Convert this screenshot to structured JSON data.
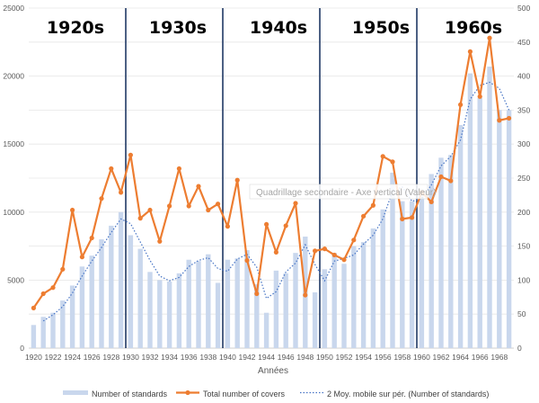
{
  "chart_data": {
    "type": "bar",
    "xlabel": "Années",
    "categories": [
      1920,
      1921,
      1922,
      1923,
      1924,
      1925,
      1926,
      1927,
      1928,
      1929,
      1930,
      1931,
      1932,
      1933,
      1934,
      1935,
      1936,
      1937,
      1938,
      1939,
      1940,
      1941,
      1942,
      1943,
      1944,
      1945,
      1946,
      1947,
      1948,
      1949,
      1950,
      1951,
      1952,
      1953,
      1954,
      1955,
      1956,
      1957,
      1958,
      1959,
      1960,
      1961,
      1962,
      1963,
      1964,
      1965,
      1966,
      1967,
      1968,
      1969
    ],
    "x_tick_labels": [
      "1920",
      "1922",
      "1924",
      "1926",
      "1928",
      "1930",
      "1932",
      "1934",
      "1936",
      "1938",
      "1940",
      "1942",
      "1944",
      "1946",
      "1948",
      "1950",
      "1952",
      "1954",
      "1956",
      "1958",
      "1960",
      "1962",
      "1964",
      "1966",
      "1968"
    ],
    "y_left": {
      "min": 0,
      "max": 25000,
      "ticks": [
        "0",
        "5000",
        "10000",
        "15000",
        "20000",
        "25000"
      ]
    },
    "y_right": {
      "min": 0,
      "max": 500,
      "ticks": [
        "0",
        "50",
        "100",
        "150",
        "200",
        "250",
        "300",
        "350",
        "400",
        "450",
        "500"
      ]
    },
    "series": [
      {
        "name": "Number of standards",
        "kind": "bar",
        "axis": "left",
        "color": "#c9d7ed",
        "values": [
          1700,
          2300,
          2600,
          3500,
          4600,
          6000,
          6800,
          8000,
          9000,
          10000,
          8300,
          7300,
          5600,
          5000,
          4900,
          5500,
          6500,
          6400,
          6900,
          4800,
          6500,
          6600,
          7200,
          4700,
          2600,
          5700,
          5500,
          7000,
          8200,
          4100,
          5800,
          7000,
          6200,
          7500,
          7800,
          8800,
          10200,
          12900,
          10800,
          10800,
          11200,
          12800,
          14000,
          14200,
          16400,
          20200,
          18400,
          20700,
          17500,
          17500
        ]
      },
      {
        "name": "Total number of covers",
        "kind": "line-markers",
        "axis": "right",
        "color": "#ed7d31",
        "values": [
          59,
          80,
          89,
          116,
          203,
          134,
          162,
          220,
          264,
          229,
          284,
          191,
          203,
          157,
          209,
          264,
          209,
          238,
          203,
          212,
          179,
          247,
          129,
          80,
          182,
          141,
          180,
          213,
          78,
          143,
          146,
          137,
          130,
          159,
          194,
          210,
          282,
          274,
          190,
          192,
          229,
          215,
          252,
          246,
          358,
          436,
          370,
          456,
          335,
          338
        ]
      },
      {
        "name": "2 Moy. mobile sur pér. (Number of standards)",
        "kind": "dotted-line",
        "axis": "left",
        "color": "#4472c4",
        "values": [
          null,
          2000,
          2450,
          3050,
          4050,
          5300,
          6400,
          7400,
          8500,
          9500,
          9150,
          7800,
          6450,
          5300,
          4950,
          5200,
          6000,
          6450,
          6650,
          5850,
          5650,
          6550,
          6900,
          5950,
          3650,
          4150,
          5600,
          6250,
          7600,
          6150,
          4950,
          6400,
          6600,
          6850,
          7650,
          8300,
          9500,
          11550,
          11850,
          10800,
          11000,
          12000,
          13400,
          14100,
          15300,
          18300,
          19300,
          19550,
          19100,
          17500
        ]
      }
    ],
    "annotations": [
      "1920s",
      "1930s",
      "1940s",
      "1950s",
      "1960s"
    ],
    "tooltip": "Quadrillage secondaire - Axe vertical (Valeur)",
    "grid": "horizontal",
    "legend_position": "bottom"
  }
}
